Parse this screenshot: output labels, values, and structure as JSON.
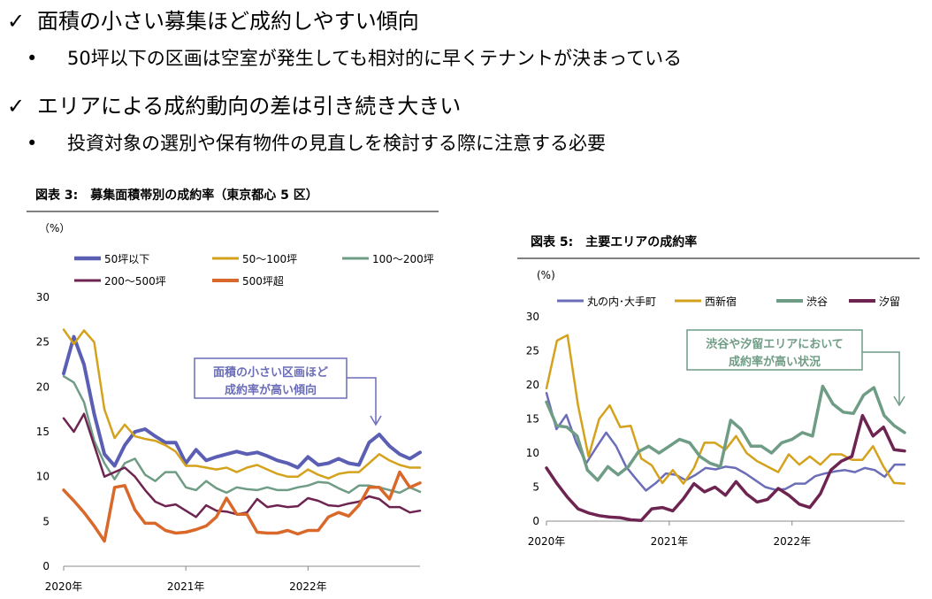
{
  "bullets": [
    {
      "main": "面積の小さい募集ほど成約しやすい傾向",
      "sub": "50坪以下の区画は空室が発生しても相対的に早くテナントが決まっている"
    },
    {
      "main": "エリアによる成約動向の差は引き続き大きい",
      "sub": "投資対象の選別や保有物件の見直しを検討する際に注意する必要"
    }
  ],
  "check_glyph": "✓",
  "dot_glyph": "•",
  "chart_data": [
    {
      "type": "line",
      "title": "図表 3:　募集面積帯別の成約率（東京都心 5 区）",
      "unit_label": "（%）",
      "ylim": [
        0,
        30
      ],
      "yticks": [
        "0",
        "5",
        "10",
        "15",
        "20",
        "25",
        "30"
      ],
      "x_labels": [
        "2020年",
        "2021年",
        "2022年"
      ],
      "x_label_index": [
        0,
        12,
        24
      ],
      "callout": "面積の小さい区画ほど\n成約率が高い傾向",
      "series": [
        {
          "name": "50坪以下",
          "color": "#5b5fb4",
          "width": 4,
          "values": [
            21.5,
            25.6,
            22.5,
            17.0,
            12.5,
            11.2,
            13.5,
            15.0,
            15.3,
            14.5,
            13.8,
            13.8,
            11.5,
            13.0,
            11.8,
            12.2,
            12.5,
            12.8,
            12.5,
            12.7,
            12.3,
            11.8,
            11.5,
            11.0,
            12.2,
            11.3,
            11.5,
            12.0,
            11.5,
            11.3,
            13.8,
            14.7,
            13.4,
            12.5,
            12.0,
            12.7
          ]
        },
        {
          "name": "50～100坪",
          "color": "#d4a21c",
          "width": 2.5,
          "values": [
            26.4,
            24.8,
            26.3,
            25.0,
            17.5,
            14.3,
            15.8,
            14.5,
            14.2,
            14.0,
            13.5,
            12.8,
            11.2,
            11.2,
            11.0,
            10.8,
            11.0,
            10.5,
            11.0,
            11.3,
            10.8,
            10.3,
            10.0,
            10.0,
            10.8,
            10.2,
            9.8,
            10.3,
            10.5,
            10.5,
            11.5,
            12.5,
            11.8,
            11.3,
            11.0,
            11.0
          ]
        },
        {
          "name": "100～200坪",
          "color": "#6f9c85",
          "width": 2.5,
          "values": [
            21.2,
            20.5,
            18.3,
            14.0,
            11.5,
            9.7,
            11.5,
            12.0,
            10.2,
            9.5,
            10.5,
            10.5,
            8.8,
            8.5,
            9.5,
            8.7,
            8.2,
            8.8,
            8.6,
            8.5,
            8.8,
            8.5,
            8.5,
            8.8,
            9.0,
            9.4,
            9.3,
            8.7,
            8.2,
            9.0,
            9.0,
            8.8,
            8.5,
            8.2,
            8.8,
            8.3
          ]
        },
        {
          "name": "200～500坪",
          "color": "#6e2451",
          "width": 2.5,
          "values": [
            16.5,
            15.0,
            17.0,
            13.5,
            10.0,
            10.5,
            11.0,
            10.0,
            8.5,
            7.2,
            6.7,
            6.9,
            6.2,
            5.5,
            6.8,
            6.2,
            6.1,
            5.8,
            6.0,
            7.5,
            6.6,
            6.8,
            6.6,
            6.7,
            7.6,
            7.3,
            6.8,
            6.7,
            7.0,
            7.2,
            7.8,
            7.5,
            6.6,
            6.6,
            6.0,
            6.2
          ]
        },
        {
          "name": "500坪超",
          "color": "#d9692b",
          "width": 3.5,
          "values": [
            8.5,
            7.3,
            6.0,
            4.5,
            2.8,
            8.8,
            9.0,
            6.3,
            4.8,
            4.8,
            4.0,
            3.7,
            3.8,
            4.1,
            4.5,
            5.5,
            7.6,
            5.8,
            5.8,
            3.8,
            3.7,
            3.7,
            4.0,
            3.6,
            4.0,
            4.0,
            5.5,
            6.0,
            5.6,
            6.8,
            8.8,
            8.8,
            7.5,
            10.5,
            8.8,
            9.3
          ]
        }
      ]
    },
    {
      "type": "line",
      "title": "図表 5:　主要エリアの成約率",
      "unit_label": "(%)",
      "ylim": [
        0,
        30
      ],
      "yticks": [
        "0",
        "5",
        "10",
        "15",
        "20",
        "25",
        "30"
      ],
      "x_labels": [
        "2020年",
        "2021年",
        "2022年"
      ],
      "x_label_index": [
        0,
        12,
        24
      ],
      "callout": "渋谷や汐留エリアにおいて\n成約率が高い状況",
      "series": [
        {
          "name": "丸の内･大手町",
          "color": "#6b6db8",
          "width": 2.5,
          "values": [
            18.8,
            13.5,
            15.6,
            11.5,
            8.5,
            10.8,
            13.0,
            11.0,
            8.0,
            6.2,
            4.5,
            5.6,
            7.0,
            6.8,
            6.0,
            6.8,
            7.8,
            7.6,
            8.0,
            7.8,
            7.0,
            6.0,
            5.0,
            4.6,
            4.7,
            5.5,
            5.5,
            6.6,
            7.0,
            7.3,
            7.5,
            7.2,
            7.8,
            7.5,
            6.5,
            8.3,
            8.3
          ]
        },
        {
          "name": "西新宿",
          "color": "#d4a21c",
          "width": 2.5,
          "values": [
            19.5,
            26.5,
            27.3,
            17.0,
            9.5,
            15.0,
            17.0,
            13.8,
            14.0,
            9.2,
            8.2,
            5.6,
            7.5,
            5.5,
            7.8,
            11.5,
            11.5,
            10.5,
            12.5,
            10.0,
            8.8,
            8.0,
            7.2,
            9.8,
            8.3,
            9.5,
            8.3,
            9.8,
            9.8,
            9.0,
            9.0,
            11.0,
            8.0,
            5.6,
            5.5
          ]
        },
        {
          "name": "渋谷",
          "color": "#6f9c85",
          "width": 3.5,
          "values": [
            17.5,
            14.0,
            13.8,
            12.5,
            7.5,
            6.0,
            8.0,
            6.8,
            8.0,
            10.2,
            11.0,
            10.0,
            11.0,
            12.0,
            11.5,
            9.5,
            8.5,
            8.0,
            14.8,
            13.5,
            11.0,
            11.0,
            10.0,
            11.5,
            12.0,
            13.0,
            12.5,
            19.8,
            17.2,
            16.0,
            15.8,
            18.5,
            19.6,
            15.5,
            14.0,
            13.0
          ]
        },
        {
          "name": "汐留",
          "color": "#6e2451",
          "width": 3.5,
          "values": [
            7.8,
            5.5,
            3.5,
            1.8,
            1.2,
            0.8,
            0.6,
            0.5,
            0.2,
            0.1,
            1.8,
            2.0,
            1.5,
            3.3,
            5.5,
            4.3,
            5.0,
            3.8,
            5.8,
            4.0,
            2.8,
            3.2,
            4.8,
            3.8,
            2.5,
            2.0,
            4.0,
            7.5,
            8.8,
            9.5,
            15.5,
            12.5,
            13.8,
            10.5,
            10.3
          ]
        }
      ]
    }
  ]
}
